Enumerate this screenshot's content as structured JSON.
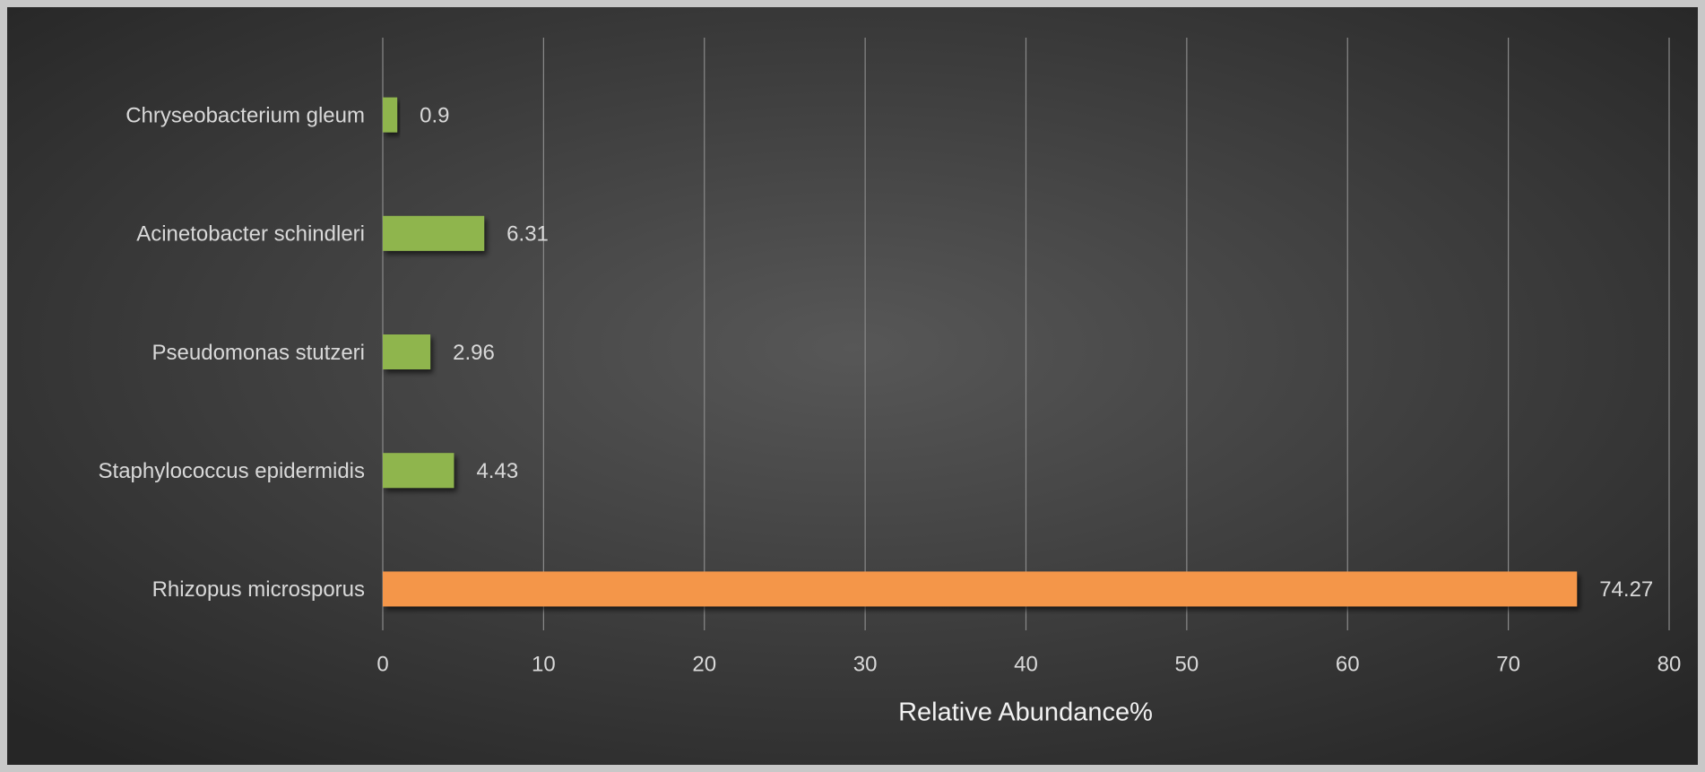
{
  "chart_data": {
    "type": "bar",
    "orientation": "horizontal",
    "categories": [
      "Chryseobacterium gleum",
      "Acinetobacter schindleri",
      "Pseudomonas stutzeri",
      "Staphylococcus epidermidis",
      "Rhizopus microsporus"
    ],
    "values": [
      0.9,
      6.31,
      2.96,
      4.43,
      74.27
    ],
    "colors": [
      "#8fb54e",
      "#8fb54e",
      "#8fb54e",
      "#8fb54e",
      "#f4964a"
    ],
    "x_label": "Relative Abundance%",
    "xlim": [
      0,
      80
    ],
    "xticks": [
      0,
      10,
      20,
      30,
      40,
      50,
      60,
      70,
      80
    ],
    "grid": true
  }
}
